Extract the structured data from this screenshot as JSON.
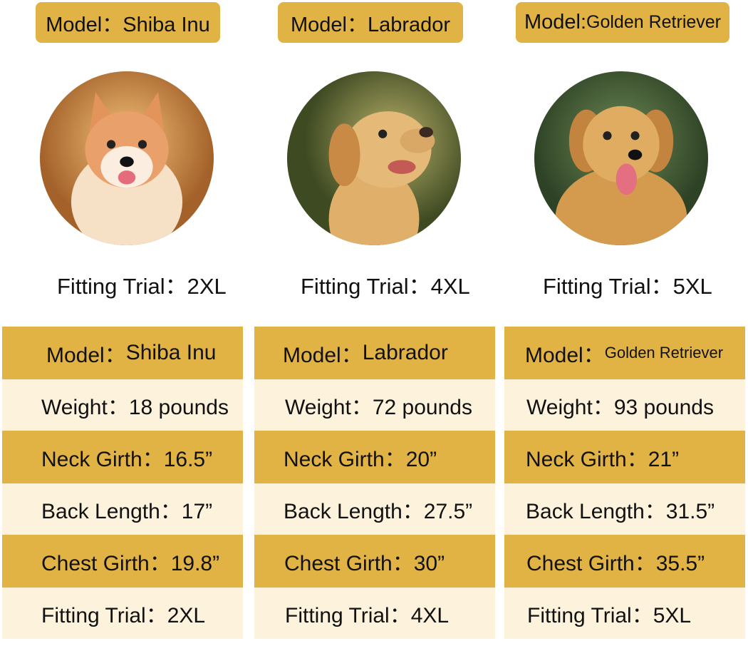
{
  "colors": {
    "header_gold": "#E1B244",
    "row_cream": "#FDF3DC"
  },
  "dogs": [
    {
      "model_label": "Model：Shiba Inu",
      "photo": "shiba-inu-photo",
      "fitting_trial": "Fitting Trial：2XL",
      "table": {
        "model_prefix": "Model：",
        "model": "Shiba Inu",
        "weight": "Weight：18 pounds",
        "neck": "Neck Girth：16.5”",
        "back": "Back Length：17”",
        "chest": "Chest Girth：19.8”",
        "fitting": "Fitting Trial：2XL"
      }
    },
    {
      "model_label": "Model：Labrador",
      "photo": "labrador-photo",
      "fitting_trial": "Fitting Trial：4XL",
      "table": {
        "model_prefix": "Model：",
        "model": "Labrador",
        "weight": "Weight：72 pounds",
        "neck": "Neck Girth：20”",
        "back": "Back Length：27.5”",
        "chest": "Chest Girth：30”",
        "fitting": "Fitting Trial：4XL"
      }
    },
    {
      "model_label_prefix": "Model:",
      "model_label_name": "Golden Retriever",
      "photo": "golden-retriever-photo",
      "fitting_trial": "Fitting Trial：5XL",
      "table": {
        "model_prefix": "Model：",
        "model": "Golden Retriever",
        "weight": "Weight：93 pounds",
        "neck": "Neck Girth：21”",
        "back": "Back Length：31.5”",
        "chest": "Chest Girth：35.5”",
        "fitting": "Fitting Trial：5XL"
      }
    }
  ]
}
